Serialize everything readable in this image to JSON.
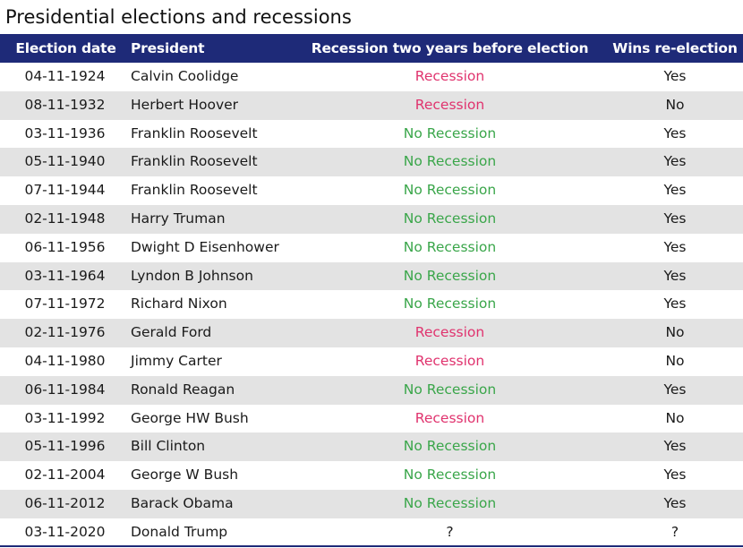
{
  "title": "Presidential elections and recessions",
  "colors": {
    "header_bg": "#1e2a78",
    "recession": "#e0336e",
    "no_recession": "#3aa64a",
    "alt_row": "#e3e3e3"
  },
  "chart_data": {
    "type": "table",
    "title": "Presidential elections and recessions",
    "columns": [
      "Election date",
      "President",
      "Recession two years before election",
      "Wins re-election"
    ],
    "rows": [
      [
        "04-11-1924",
        "Calvin Coolidge",
        "Recession",
        "Yes"
      ],
      [
        "08-11-1932",
        "Herbert Hoover",
        "Recession",
        "No"
      ],
      [
        "03-11-1936",
        "Franklin Roosevelt",
        "No Recession",
        "Yes"
      ],
      [
        "05-11-1940",
        "Franklin Roosevelt",
        "No Recession",
        "Yes"
      ],
      [
        "07-11-1944",
        "Franklin Roosevelt",
        "No Recession",
        "Yes"
      ],
      [
        "02-11-1948",
        "Harry Truman",
        "No Recession",
        "Yes"
      ],
      [
        "06-11-1956",
        "Dwight D Eisenhower",
        "No Recession",
        "Yes"
      ],
      [
        "03-11-1964",
        "Lyndon B Johnson",
        "No Recession",
        "Yes"
      ],
      [
        "07-11-1972",
        "Richard Nixon",
        "No Recession",
        "Yes"
      ],
      [
        "02-11-1976",
        "Gerald Ford",
        "Recession",
        "No"
      ],
      [
        "04-11-1980",
        "Jimmy Carter",
        "Recession",
        "No"
      ],
      [
        "06-11-1984",
        "Ronald Reagan",
        "No Recession",
        "Yes"
      ],
      [
        "03-11-1992",
        "George HW Bush",
        "Recession",
        "No"
      ],
      [
        "05-11-1996",
        "Bill Clinton",
        "No Recession",
        "Yes"
      ],
      [
        "02-11-2004",
        "George W Bush",
        "No Recession",
        "Yes"
      ],
      [
        "06-11-2012",
        "Barack Obama",
        "No Recession",
        "Yes"
      ],
      [
        "03-11-2020",
        "Donald Trump",
        "?",
        "?"
      ]
    ]
  }
}
